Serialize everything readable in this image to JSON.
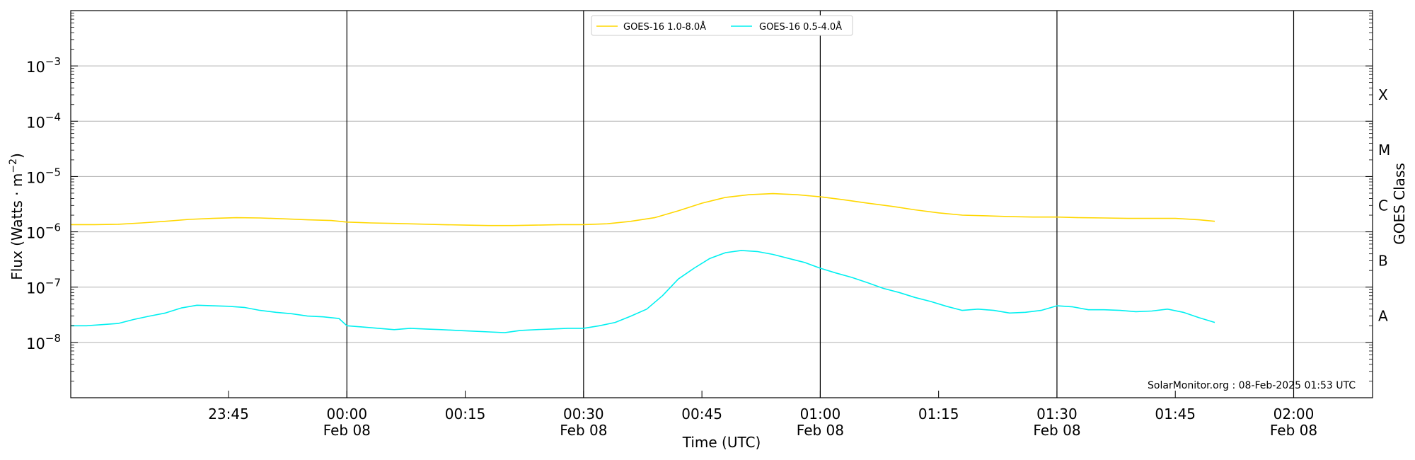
{
  "chart_data": {
    "type": "line",
    "xlabel": "Time (UTC)",
    "ylabel": "Flux (Watts · m",
    "ylabel_sup": "−2",
    "ylabel_end": ")",
    "right_label": "GOES Class",
    "scale": "log",
    "ylim": [
      1e-09,
      0.01
    ],
    "xlim": [
      "2025-02-07 23:25",
      "2025-02-08 02:10"
    ],
    "grid": "horizontal",
    "legend_position": "top-center",
    "y_ticks": [
      {
        "value": 1e-08,
        "base": "10",
        "exp": "−8"
      },
      {
        "value": 1e-07,
        "base": "10",
        "exp": "−7"
      },
      {
        "value": 1e-06,
        "base": "10",
        "exp": "−6"
      },
      {
        "value": 1e-05,
        "base": "10",
        "exp": "−5"
      },
      {
        "value": 0.0001,
        "base": "10",
        "exp": "−4"
      },
      {
        "value": 0.001,
        "base": "10",
        "exp": "−3"
      }
    ],
    "x_ticks": [
      {
        "time": "2025-02-07 23:45",
        "label": "23:45",
        "date": ""
      },
      {
        "time": "2025-02-08 00:00",
        "label": "00:00",
        "date": "Feb 08"
      },
      {
        "time": "2025-02-08 00:15",
        "label": "00:15",
        "date": ""
      },
      {
        "time": "2025-02-08 00:30",
        "label": "00:30",
        "date": "Feb 08"
      },
      {
        "time": "2025-02-08 00:45",
        "label": "00:45",
        "date": ""
      },
      {
        "time": "2025-02-08 01:00",
        "label": "01:00",
        "date": "Feb 08"
      },
      {
        "time": "2025-02-08 01:15",
        "label": "01:15",
        "date": ""
      },
      {
        "time": "2025-02-08 01:30",
        "label": "01:30",
        "date": "Feb 08"
      },
      {
        "time": "2025-02-08 01:45",
        "label": "01:45",
        "date": ""
      },
      {
        "time": "2025-02-08 02:00",
        "label": "02:00",
        "date": "Feb 08"
      }
    ],
    "vertical_lines": [
      "2025-02-08 00:00",
      "2025-02-08 00:30",
      "2025-02-08 01:00",
      "2025-02-08 01:30",
      "2025-02-08 02:00"
    ],
    "goes_classes": [
      {
        "label": "A",
        "value": 3e-08
      },
      {
        "label": "B",
        "value": 3e-07
      },
      {
        "label": "C",
        "value": 3e-06
      },
      {
        "label": "M",
        "value": 3e-05
      },
      {
        "label": "X",
        "value": 0.0003
      }
    ],
    "series": [
      {
        "name": "GOES-16 1.0-8.0Å",
        "color": "#ffd700",
        "points": [
          [
            "2025-02-07 23:25",
            1.35e-06
          ],
          [
            "2025-02-07 23:28",
            1.35e-06
          ],
          [
            "2025-02-07 23:31",
            1.37e-06
          ],
          [
            "2025-02-07 23:34",
            1.45e-06
          ],
          [
            "2025-02-07 23:37",
            1.55e-06
          ],
          [
            "2025-02-07 23:40",
            1.68e-06
          ],
          [
            "2025-02-07 23:43",
            1.75e-06
          ],
          [
            "2025-02-07 23:46",
            1.8e-06
          ],
          [
            "2025-02-07 23:49",
            1.78e-06
          ],
          [
            "2025-02-07 23:52",
            1.72e-06
          ],
          [
            "2025-02-07 23:55",
            1.65e-06
          ],
          [
            "2025-02-07 23:58",
            1.6e-06
          ],
          [
            "2025-02-08 00:00",
            1.5e-06
          ],
          [
            "2025-02-08 00:03",
            1.45e-06
          ],
          [
            "2025-02-08 00:06",
            1.42e-06
          ],
          [
            "2025-02-08 00:09",
            1.38e-06
          ],
          [
            "2025-02-08 00:12",
            1.35e-06
          ],
          [
            "2025-02-08 00:15",
            1.32e-06
          ],
          [
            "2025-02-08 00:18",
            1.3e-06
          ],
          [
            "2025-02-08 00:21",
            1.3e-06
          ],
          [
            "2025-02-08 00:24",
            1.32e-06
          ],
          [
            "2025-02-08 00:27",
            1.35e-06
          ],
          [
            "2025-02-08 00:30",
            1.35e-06
          ],
          [
            "2025-02-08 00:33",
            1.4e-06
          ],
          [
            "2025-02-08 00:36",
            1.55e-06
          ],
          [
            "2025-02-08 00:39",
            1.8e-06
          ],
          [
            "2025-02-08 00:42",
            2.4e-06
          ],
          [
            "2025-02-08 00:45",
            3.3e-06
          ],
          [
            "2025-02-08 00:48",
            4.2e-06
          ],
          [
            "2025-02-08 00:51",
            4.7e-06
          ],
          [
            "2025-02-08 00:54",
            4.9e-06
          ],
          [
            "2025-02-08 00:57",
            4.7e-06
          ],
          [
            "2025-02-08 01:00",
            4.3e-06
          ],
          [
            "2025-02-08 01:03",
            3.8e-06
          ],
          [
            "2025-02-08 01:06",
            3.3e-06
          ],
          [
            "2025-02-08 01:09",
            2.9e-06
          ],
          [
            "2025-02-08 01:12",
            2.5e-06
          ],
          [
            "2025-02-08 01:15",
            2.2e-06
          ],
          [
            "2025-02-08 01:18",
            2e-06
          ],
          [
            "2025-02-08 01:21",
            1.95e-06
          ],
          [
            "2025-02-08 01:24",
            1.88e-06
          ],
          [
            "2025-02-08 01:27",
            1.85e-06
          ],
          [
            "2025-02-08 01:30",
            1.85e-06
          ],
          [
            "2025-02-08 01:33",
            1.8e-06
          ],
          [
            "2025-02-08 01:36",
            1.78e-06
          ],
          [
            "2025-02-08 01:39",
            1.75e-06
          ],
          [
            "2025-02-08 01:42",
            1.75e-06
          ],
          [
            "2025-02-08 01:45",
            1.75e-06
          ],
          [
            "2025-02-08 01:48",
            1.65e-06
          ],
          [
            "2025-02-08 01:50",
            1.55e-06
          ]
        ]
      },
      {
        "name": "GOES-16 0.5-4.0Å",
        "color": "#00f0f0",
        "points": [
          [
            "2025-02-07 23:25",
            2e-08
          ],
          [
            "2025-02-07 23:27",
            2e-08
          ],
          [
            "2025-02-07 23:29",
            2.1e-08
          ],
          [
            "2025-02-07 23:31",
            2.2e-08
          ],
          [
            "2025-02-07 23:33",
            2.6e-08
          ],
          [
            "2025-02-07 23:35",
            3e-08
          ],
          [
            "2025-02-07 23:37",
            3.4e-08
          ],
          [
            "2025-02-07 23:39",
            4.2e-08
          ],
          [
            "2025-02-07 23:41",
            4.7e-08
          ],
          [
            "2025-02-07 23:43",
            4.6e-08
          ],
          [
            "2025-02-07 23:45",
            4.5e-08
          ],
          [
            "2025-02-07 23:47",
            4.3e-08
          ],
          [
            "2025-02-07 23:49",
            3.8e-08
          ],
          [
            "2025-02-07 23:51",
            3.5e-08
          ],
          [
            "2025-02-07 23:53",
            3.3e-08
          ],
          [
            "2025-02-07 23:55",
            3e-08
          ],
          [
            "2025-02-07 23:57",
            2.9e-08
          ],
          [
            "2025-02-07 23:59",
            2.7e-08
          ],
          [
            "2025-02-08 00:00",
            2e-08
          ],
          [
            "2025-02-08 00:02",
            1.9e-08
          ],
          [
            "2025-02-08 00:04",
            1.8e-08
          ],
          [
            "2025-02-08 00:06",
            1.7e-08
          ],
          [
            "2025-02-08 00:08",
            1.8e-08
          ],
          [
            "2025-02-08 00:10",
            1.75e-08
          ],
          [
            "2025-02-08 00:12",
            1.7e-08
          ],
          [
            "2025-02-08 00:14",
            1.65e-08
          ],
          [
            "2025-02-08 00:16",
            1.6e-08
          ],
          [
            "2025-02-08 00:18",
            1.55e-08
          ],
          [
            "2025-02-08 00:20",
            1.5e-08
          ],
          [
            "2025-02-08 00:22",
            1.65e-08
          ],
          [
            "2025-02-08 00:24",
            1.7e-08
          ],
          [
            "2025-02-08 00:26",
            1.75e-08
          ],
          [
            "2025-02-08 00:28",
            1.8e-08
          ],
          [
            "2025-02-08 00:30",
            1.8e-08
          ],
          [
            "2025-02-08 00:32",
            2e-08
          ],
          [
            "2025-02-08 00:34",
            2.3e-08
          ],
          [
            "2025-02-08 00:36",
            3e-08
          ],
          [
            "2025-02-08 00:38",
            4e-08
          ],
          [
            "2025-02-08 00:40",
            7e-08
          ],
          [
            "2025-02-08 00:42",
            1.4e-07
          ],
          [
            "2025-02-08 00:44",
            2.2e-07
          ],
          [
            "2025-02-08 00:46",
            3.3e-07
          ],
          [
            "2025-02-08 00:48",
            4.2e-07
          ],
          [
            "2025-02-08 00:50",
            4.6e-07
          ],
          [
            "2025-02-08 00:52",
            4.4e-07
          ],
          [
            "2025-02-08 00:54",
            3.9e-07
          ],
          [
            "2025-02-08 00:56",
            3.3e-07
          ],
          [
            "2025-02-08 00:58",
            2.8e-07
          ],
          [
            "2025-02-08 01:00",
            2.2e-07
          ],
          [
            "2025-02-08 01:02",
            1.8e-07
          ],
          [
            "2025-02-08 01:04",
            1.5e-07
          ],
          [
            "2025-02-08 01:06",
            1.2e-07
          ],
          [
            "2025-02-08 01:08",
            9.5e-08
          ],
          [
            "2025-02-08 01:10",
            8e-08
          ],
          [
            "2025-02-08 01:12",
            6.5e-08
          ],
          [
            "2025-02-08 01:14",
            5.5e-08
          ],
          [
            "2025-02-08 01:16",
            4.5e-08
          ],
          [
            "2025-02-08 01:18",
            3.8e-08
          ],
          [
            "2025-02-08 01:20",
            4e-08
          ],
          [
            "2025-02-08 01:22",
            3.8e-08
          ],
          [
            "2025-02-08 01:24",
            3.4e-08
          ],
          [
            "2025-02-08 01:26",
            3.5e-08
          ],
          [
            "2025-02-08 01:28",
            3.8e-08
          ],
          [
            "2025-02-08 01:30",
            4.6e-08
          ],
          [
            "2025-02-08 01:32",
            4.4e-08
          ],
          [
            "2025-02-08 01:34",
            3.9e-08
          ],
          [
            "2025-02-08 01:36",
            3.9e-08
          ],
          [
            "2025-02-08 01:38",
            3.8e-08
          ],
          [
            "2025-02-08 01:40",
            3.6e-08
          ],
          [
            "2025-02-08 01:42",
            3.7e-08
          ],
          [
            "2025-02-08 01:44",
            4e-08
          ],
          [
            "2025-02-08 01:46",
            3.5e-08
          ],
          [
            "2025-02-08 01:48",
            2.8e-08
          ],
          [
            "2025-02-08 01:50",
            2.3e-08
          ]
        ]
      }
    ]
  },
  "footer": {
    "credit": "SolarMonitor.org : 08-Feb-2025 01:53 UTC"
  }
}
